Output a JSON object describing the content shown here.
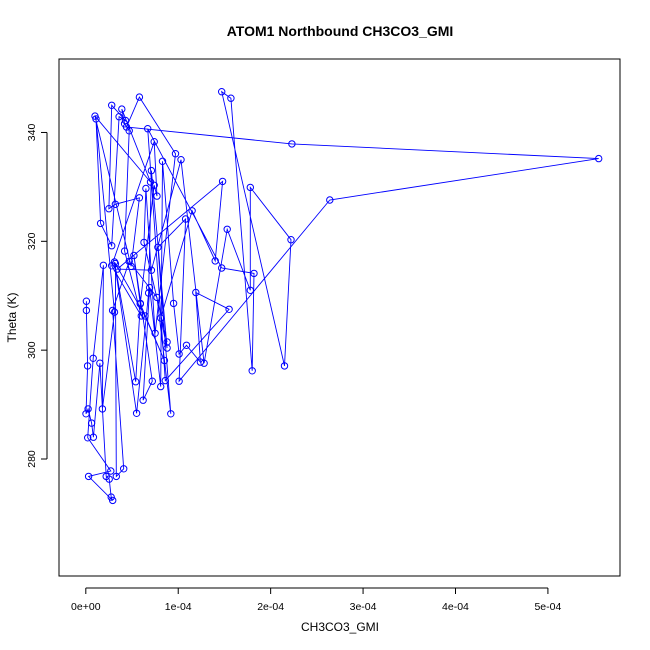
{
  "chart_data": {
    "type": "scatter",
    "title": "ATOM1 Northbound CH3CO3_GMI",
    "xlabel": "CH3CO3_GMI",
    "ylabel": "Theta (K)",
    "xlim": [
      -2.9e-05,
      0.000578
    ],
    "ylim": [
      258.5,
      353.5
    ],
    "xticks": [
      0,
      0.0001,
      0.0002,
      0.0003,
      0.0004,
      0.0005
    ],
    "xtick_labels": [
      "0e+00",
      "1e-04",
      "2e-04",
      "3e-04",
      "4e-04",
      "5e-04"
    ],
    "yticks": [
      280,
      300,
      320,
      340
    ],
    "ytick_labels": [
      "280",
      "300",
      "320",
      "340"
    ],
    "grid": false,
    "connected": true,
    "color": "#0000ff",
    "series": [
      {
        "x": [
          6e-07,
          6e-07,
          1.9e-06,
          2e-07,
          2.5e-06,
          6.3e-06,
          8.2e-06,
          1.52e-05,
          2.21e-05,
          2.53e-05,
          2.75e-05,
          2.91e-05,
          3e-06,
          2.71e-05,
          2e-06,
          8e-06,
          1.9e-05,
          1.8e-05,
          3.1e-05,
          1.1e-05,
          1.6e-05,
          2.8e-05,
          3.6e-05,
          4.3e-05,
          2.8e-05,
          2.5e-05,
          3.2e-05,
          5.8e-05,
          4.9e-05,
          1e-05,
          7e-05,
          3.9e-05,
          4.2e-05,
          4.7e-05,
          4.2e-05,
          6e-05,
          2.8e-05,
          7.4e-05,
          7.7e-05,
          7.4e-05,
          5.9e-05,
          5.4e-05,
          3.1e-05,
          5.5e-05,
          6.8e-05,
          7.1e-05,
          8.8e-05,
          8.1e-05,
          0.000115,
          0.00014,
          0.000148,
          3.4e-05,
          7.1e-05,
          0.000103,
          0.000128,
          0.000153,
          0.000178,
          0.000178,
          0.000222,
          0.000215,
          0.000147,
          0.000157,
          0.00018,
          0.000182,
          0.000147,
          6.7e-05,
          8.6e-05,
          0.000155,
          0.000119,
          0.000124,
          0.000109,
          0.000101,
          9.5e-05,
          8.3e-05,
          8.1e-05,
          6.9e-05,
          6.2e-05,
          7.2e-05,
          5.2e-05,
          5.9e-05,
          8.5e-05,
          6.4e-05,
          3.2e-05,
          3.3e-05,
          4.1e-05,
          2.9e-05,
          4.7e-05,
          7.7e-05,
          9.2e-05,
          7.8e-05,
          0.000108,
          0.000101,
          0.000264,
          0.000555,
          0.000223,
          4.4e-05,
          5.8e-05,
          9.7e-05,
          7.5e-05,
          6.5e-05,
          6.3e-05,
          8.8e-05
        ],
        "y": [
          309,
          307.3,
          297.1,
          288.3,
          289.2,
          286.6,
          284,
          297.6,
          276.8,
          276.3,
          273,
          272.4,
          276.8,
          277.8,
          283.9,
          298.5,
          315.6,
          289.2,
          307,
          342.5,
          323.3,
          319.2,
          342.9,
          342.2,
          345,
          326,
          326.8,
          328,
          315.4,
          343,
          330.9,
          344.3,
          341.6,
          340.3,
          318.2,
          306.3,
          315.5,
          338.3,
          328.3,
          330.3,
          308.6,
          294.2,
          316.2,
          288.4,
          310.5,
          333,
          300.4,
          305.9,
          325.6,
          316.4,
          331,
          314.9,
          314.7,
          335,
          297.6,
          322.2,
          311,
          329.9,
          320.3,
          297.1,
          347.5,
          346.3,
          296.2,
          314.1,
          315.1,
          340.7,
          294.4,
          307.5,
          310.6,
          297.8,
          300.9,
          299.3,
          308.6,
          334.7,
          293.3,
          311.5,
          290.8,
          294.3,
          317.4,
          308.5,
          298.1,
          306.3,
          315.9,
          276.8,
          278.2,
          307.3,
          316.3,
          309.7,
          288.3,
          318.9,
          324.1,
          294.3,
          327.6,
          335.2,
          337.9,
          341,
          346.5,
          336.1,
          303.1,
          329.7,
          319.8,
          301.5
        ]
      }
    ]
  }
}
